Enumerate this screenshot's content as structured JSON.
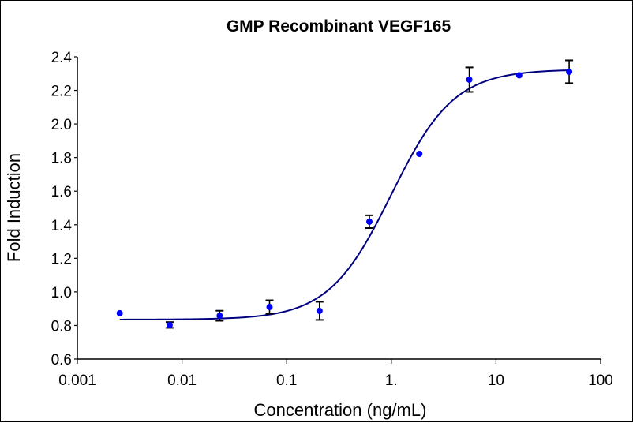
{
  "chart_data": {
    "type": "scatter",
    "title": "GMP Recombinant VEGF165",
    "xlabel": "Concentration (ng/mL)",
    "ylabel": "Fold Induction",
    "xscale": "log",
    "xlim": [
      0.001,
      100
    ],
    "ylim": [
      0.6,
      2.4
    ],
    "xticks": [
      0.001,
      0.01,
      0.1,
      1,
      10,
      100
    ],
    "xtick_labels": [
      "0.001",
      "0.01",
      "0.1",
      "1.",
      "10",
      "100"
    ],
    "yticks": [
      0.6,
      0.8,
      1.0,
      1.2,
      1.4,
      1.6,
      1.8,
      2.0,
      2.2,
      2.4
    ],
    "ytick_labels": [
      "0.6",
      "0.8",
      "1.0",
      "1.2",
      "1.4",
      "1.6",
      "1.8",
      "2.0",
      "2.2",
      "2.4"
    ],
    "grid": false,
    "legend": "none",
    "series": [
      {
        "name": "VEGF165",
        "marker_color": "#0000FF",
        "x": [
          0.00254,
          0.00762,
          0.0229,
          0.0686,
          0.206,
          0.617,
          1.85,
          5.56,
          16.67,
          50
        ],
        "y": [
          0.873,
          0.803,
          0.858,
          0.91,
          0.887,
          1.418,
          1.822,
          2.264,
          2.29,
          2.311
        ],
        "error": [
          0.0,
          0.017,
          0.03,
          0.04,
          0.054,
          0.038,
          0.0,
          0.073,
          0.0,
          0.068
        ]
      }
    ],
    "fit": {
      "model": "4PL",
      "bottom": 0.835,
      "top": 2.325,
      "ec50": 1.0,
      "hill": 1.45,
      "line_color": "#000080",
      "x_range": [
        0.00254,
        50
      ]
    }
  }
}
